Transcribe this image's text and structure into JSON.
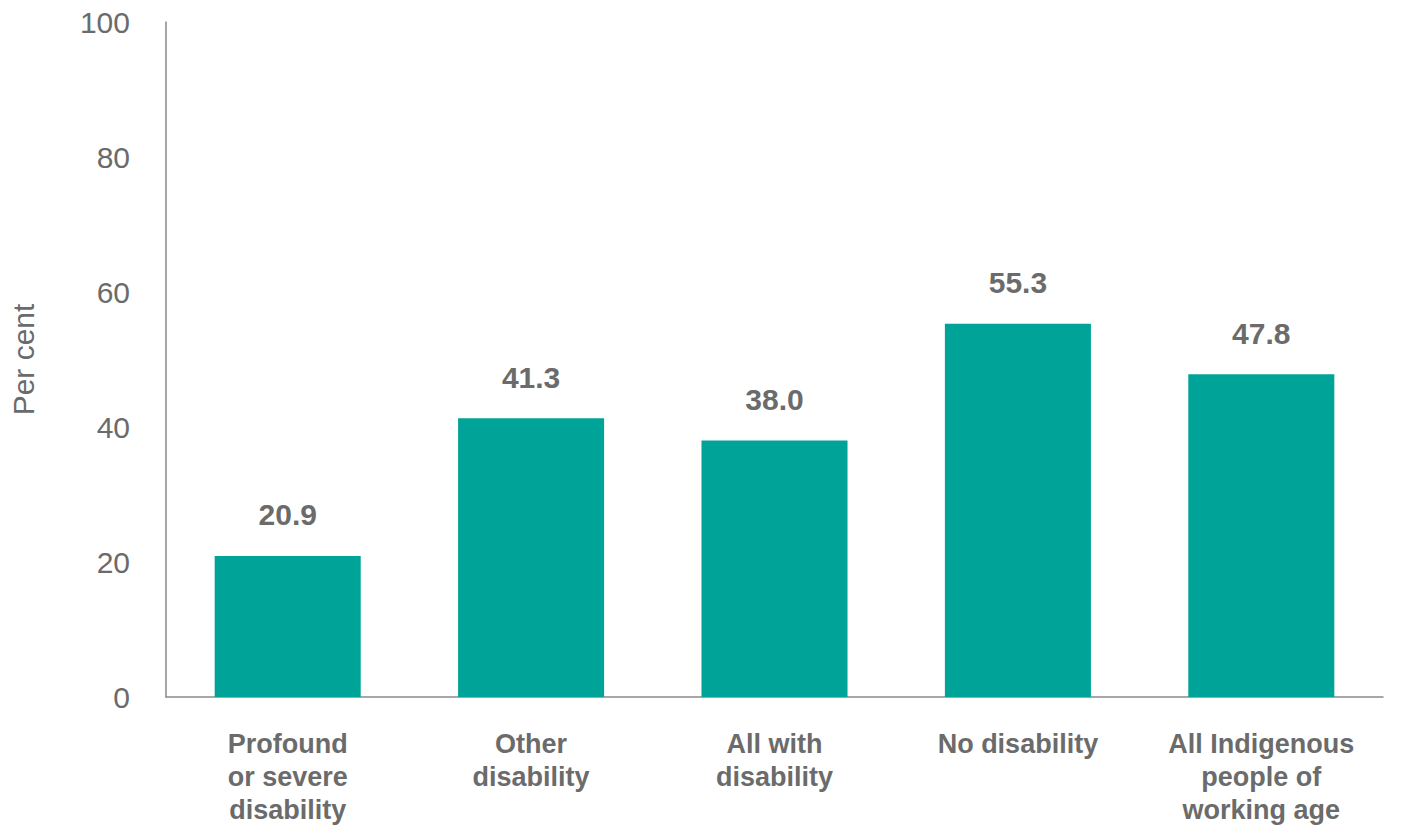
{
  "chart_data": {
    "type": "bar",
    "y_label": "Per cent",
    "categories": [
      "Profound\nor severe\ndisability",
      "Other\ndisability",
      "All with\ndisability",
      "No disability",
      "All Indigenous\npeople of\nworking age"
    ],
    "values": [
      20.9,
      41.3,
      38.0,
      55.3,
      47.8
    ],
    "value_labels": [
      "20.9",
      "41.3",
      "38.0",
      "55.3",
      "47.8"
    ],
    "data_labels": true,
    "color": "#00a398",
    "ylim": [
      0,
      100
    ],
    "yticks": [
      0,
      20,
      40,
      60,
      80,
      100
    ],
    "grid": false
  }
}
